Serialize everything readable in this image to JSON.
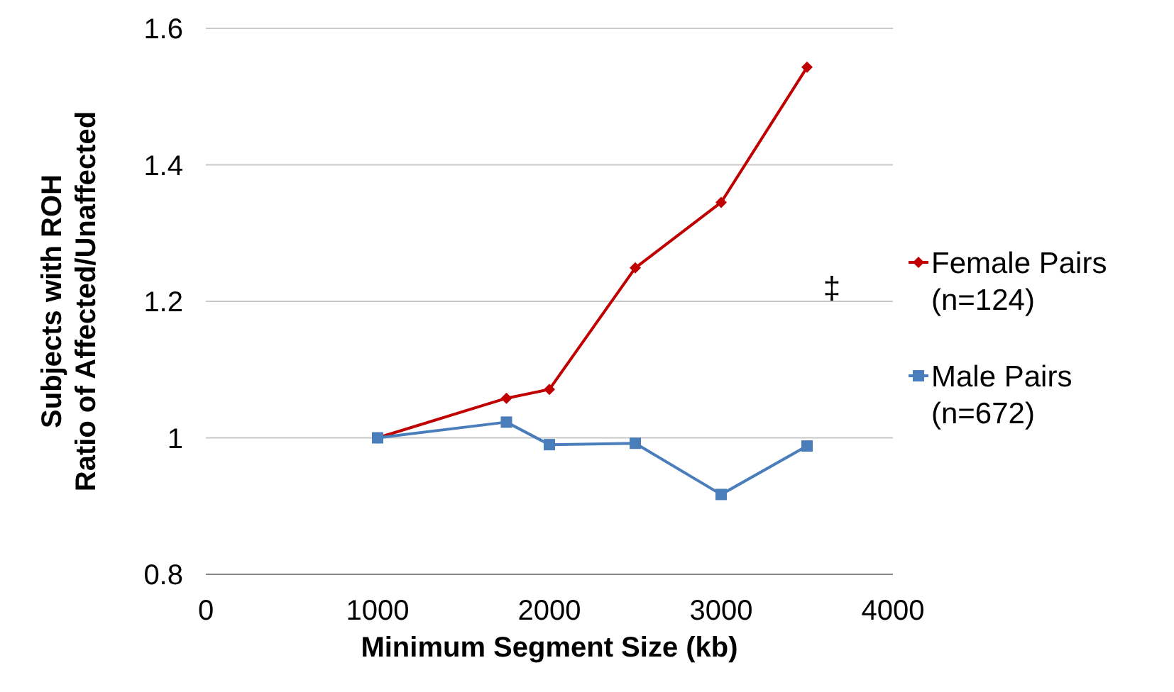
{
  "chart_data": {
    "type": "line",
    "xlabel": "Minimum Segment Size (kb)",
    "ylabel": "Subjects with ROH\nRatio of Affected/Unaffected",
    "xlim": [
      0,
      4000
    ],
    "xticks": [
      0,
      1000,
      2000,
      3000,
      4000
    ],
    "ylim": [
      0.8,
      1.6
    ],
    "yticks": [
      0.8,
      1,
      1.2,
      1.4,
      1.6
    ],
    "grid": "y",
    "legend": "right",
    "series": [
      {
        "name": "Female Pairs\n(n=124)",
        "color": "#c00000",
        "marker": "diamond",
        "x": [
          1000,
          1750,
          2000,
          2500,
          3000,
          3500
        ],
        "values": [
          1.0,
          1.058,
          1.071,
          1.249,
          1.345,
          1.543
        ]
      },
      {
        "name": "Male Pairs\n(n=672)",
        "color": "#4a7ebb",
        "marker": "square",
        "x": [
          1000,
          1750,
          2000,
          2500,
          3000,
          3500
        ],
        "values": [
          1.0,
          1.023,
          0.99,
          0.992,
          0.917,
          0.988
        ]
      }
    ],
    "annotations": [
      "‡"
    ]
  }
}
